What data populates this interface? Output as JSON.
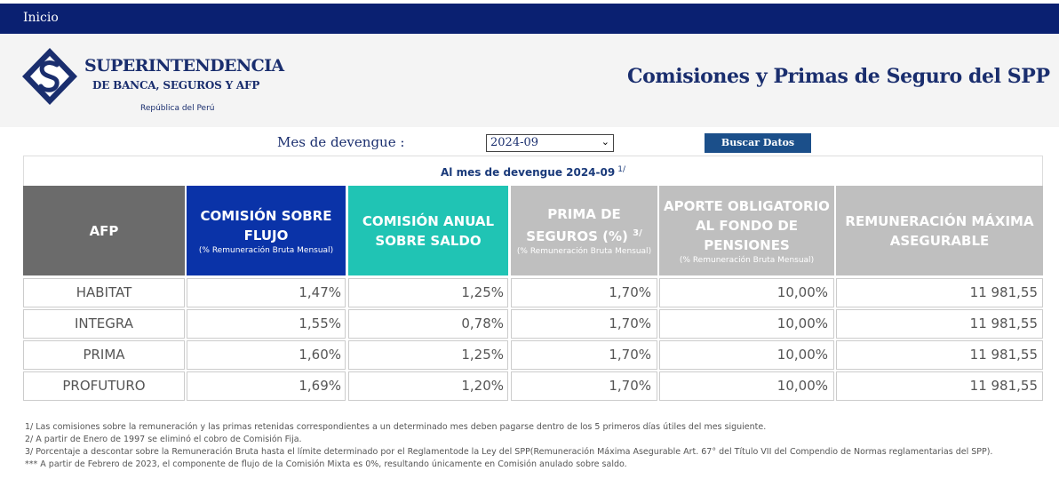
{
  "nav": {
    "home_label": "Inicio"
  },
  "logo": {
    "line1": "SUPERINTENDENCIA",
    "line2": "DE BANCA, SEGUROS Y AFP",
    "line3": "República del Perú"
  },
  "page_title": "Comisiones y Primas de Seguro del SPP",
  "filter": {
    "label": "Mes de devengue :",
    "selected_period": "2024-09",
    "button_label": "Buscar Datos"
  },
  "table": {
    "caption": "Al mes de devengue 2024-09",
    "caption_note": "1/",
    "headers": {
      "afp": "AFP",
      "flujo_title": "COMISIÓN SOBRE FLUJO",
      "flujo_sub": "(% Remuneración Bruta Mensual)",
      "saldo_title": "COMISIÓN ANUAL SOBRE SALDO",
      "prima_title": "PRIMA DE SEGUROS (%)",
      "prima_note": "3/",
      "prima_sub": "(% Remuneración Bruta Mensual)",
      "aporte_title": "APORTE OBLIGATORIO AL FONDO DE PENSIONES",
      "aporte_sub": "(% Remuneración Bruta Mensual)",
      "rem_title": "REMUNERACIÓN MÁXIMA ASEGURABLE"
    },
    "rows": [
      {
        "afp": "HABITAT",
        "flujo": "1,47%",
        "saldo": "1,25%",
        "prima": "1,70%",
        "aporte": "10,00%",
        "rem": "11 981,55"
      },
      {
        "afp": "INTEGRA",
        "flujo": "1,55%",
        "saldo": "0,78%",
        "prima": "1,70%",
        "aporte": "10,00%",
        "rem": "11 981,55"
      },
      {
        "afp": "PRIMA",
        "flujo": "1,60%",
        "saldo": "1,25%",
        "prima": "1,70%",
        "aporte": "10,00%",
        "rem": "11 981,55"
      },
      {
        "afp": "PROFUTURO",
        "flujo": "1,69%",
        "saldo": "1,20%",
        "prima": "1,70%",
        "aporte": "10,00%",
        "rem": "11 981,55"
      }
    ]
  },
  "notes": [
    "1/ Las comisiones sobre la remuneración y las primas retenidas correspondientes a un determinado mes deben pagarse dentro de los 5 primeros días útiles del mes siguiente.",
    "2/ A partir de Enero de 1997 se eliminó el cobro de Comisión Fija.",
    "3/ Porcentaje a descontar sobre la Remuneración Bruta hasta el límite determinado por el Reglamentode la Ley del SPP(Remuneración Máxima Asegurable Art. 67° del Título VII del Compendio de Normas reglamentarias del SPP).",
    "*** A partir de Febrero de 2023, el componente de flujo de la Comisión Mixta es 0%, resultando únicamente en Comisión anulado sobre saldo."
  ],
  "colors": {
    "nav_bg": "#0a2071",
    "brand_text": "#1a2e6e",
    "button_bg": "#1b4f8a",
    "header_afp": "#6b6b6b",
    "header_flujo": "#0a33a8",
    "header_saldo": "#20c4b4",
    "header_gray": "#bfbfbf"
  },
  "icons": {
    "logo": "sbs-diamond-logo-icon",
    "select": "chevron-down-icon"
  }
}
